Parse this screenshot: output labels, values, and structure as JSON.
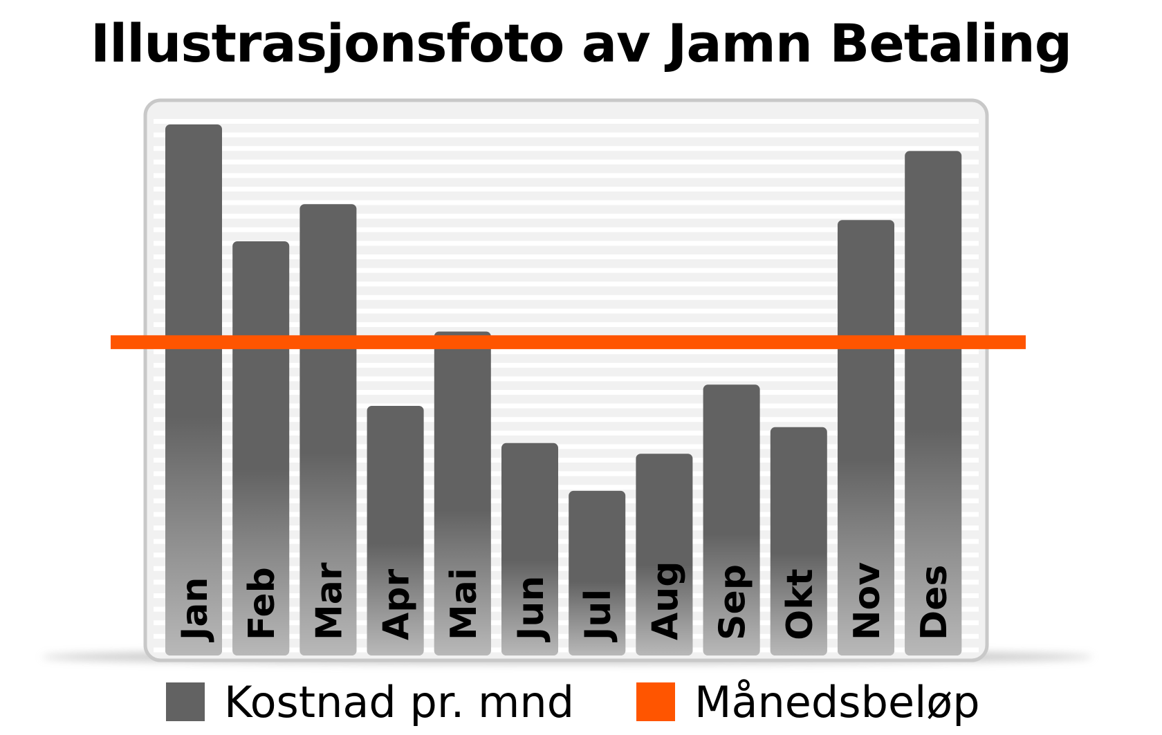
{
  "title": "Illustrasjonsfoto av Jamn Betaling",
  "colors": {
    "bar": "#626262",
    "reference_line": "#ff5500",
    "panel_border": "#c8c8c8",
    "panel_fill": "#f1f1f1",
    "grid": "#ffffff"
  },
  "legend": {
    "bar_label": "Kostnad pr. mnd",
    "line_label": "Månedsbeløp"
  },
  "chart_data": {
    "type": "bar",
    "categories": [
      "Jan",
      "Feb",
      "Mar",
      "Apr",
      "Mai",
      "Jun",
      "Jul",
      "Aug",
      "Sep",
      "Okt",
      "Nov",
      "Des"
    ],
    "series": [
      {
        "name": "Kostnad pr. mnd",
        "values": [
          100,
          78,
          85,
          47,
          61,
          40,
          31,
          38,
          51,
          43,
          82,
          95
        ]
      }
    ],
    "reference_line": {
      "name": "Månedsbeløp",
      "value": 59
    },
    "ylim": [
      0,
      100
    ],
    "grid": true,
    "legend_position": "bottom",
    "title": "Illustrasjonsfoto av Jamn Betaling",
    "xlabel": "",
    "ylabel": ""
  }
}
